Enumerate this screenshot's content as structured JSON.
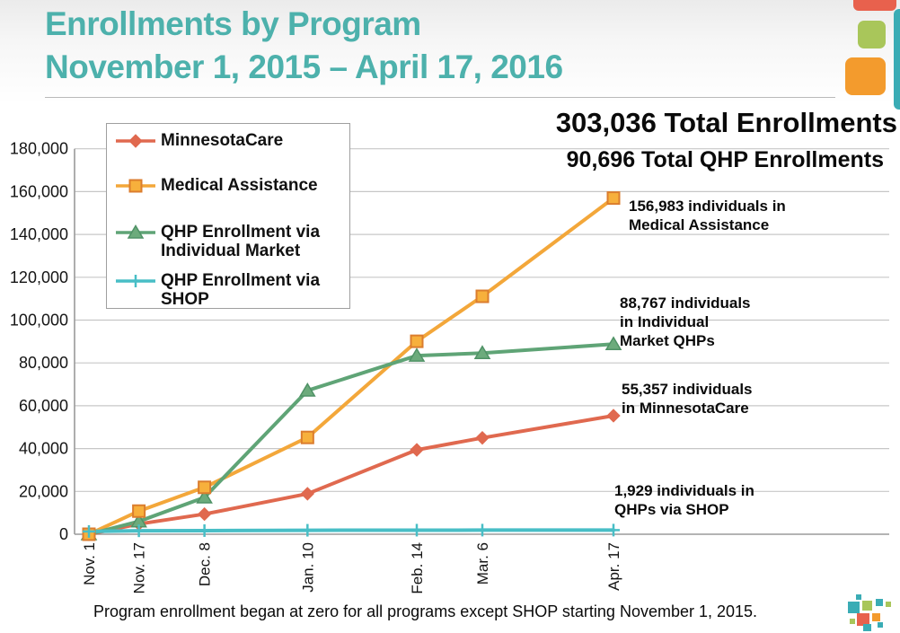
{
  "header": {
    "title_line1": "Enrollments by Program",
    "title_line2": "November 1, 2015 – April 17, 2016"
  },
  "totals": {
    "total_enrollments": "303,036 Total Enrollments",
    "total_qhp": "90,696 Total QHP Enrollments"
  },
  "annotations": [
    {
      "text": "156,983 individuals in\nMedical Assistance"
    },
    {
      "text": "88,767 individuals\nin Individual\nMarket QHPs"
    },
    {
      "text": "55,357 individuals\nin MinnesotaCare"
    },
    {
      "text": "1,929 individuals in\nQHPs via SHOP"
    }
  ],
  "footnote": "Program enrollment began at zero for all programs except SHOP starting November 1, 2015.",
  "decor": {
    "red": "#e8614d",
    "green": "#a9c65a",
    "orange": "#f39b2d",
    "teal": "#3aacb5",
    "title_teal": "#4db1ac"
  },
  "chart_data": {
    "type": "line",
    "title": "",
    "xlabel": "",
    "ylabel": "",
    "x_labels": [
      "Nov. 1",
      "Nov. 17",
      "Dec. 8",
      "Jan. 10",
      "Feb. 14",
      "Mar. 6",
      "Apr. 17"
    ],
    "x_days": [
      0,
      16,
      37,
      70,
      105,
      126,
      168
    ],
    "ylim": [
      0,
      180000
    ],
    "ytick_interval": 20000,
    "ytick_labels": [
      "0",
      "20,000",
      "40,000",
      "60,000",
      "80,000",
      "100,000",
      "120,000",
      "140,000",
      "160,000",
      "180,000"
    ],
    "grid": true,
    "legend_position": "top-left",
    "series": [
      {
        "name": "MinnesotaCare",
        "marker": "diamond",
        "color": "#e0694f",
        "values": [
          0,
          4800,
          9400,
          18900,
          39400,
          45000,
          55357
        ]
      },
      {
        "name": "Medical Assistance",
        "marker": "square",
        "color": "#f3a73a",
        "marker_fill": "#f7b03c",
        "marker_stroke": "#db7d2e",
        "values": [
          0,
          10800,
          21900,
          45200,
          90100,
          111100,
          156983
        ]
      },
      {
        "name": "QHP Enrollment via Individual Market",
        "marker": "triangle",
        "color": "#5fa476",
        "marker_fill": "#6cab7c",
        "marker_stroke": "#4f9266",
        "values": [
          0,
          6000,
          17200,
          67100,
          83400,
          84600,
          88767
        ]
      },
      {
        "name": "QHP Enrollment via SHOP",
        "marker": "plus",
        "color": "#48bec6",
        "values": [
          1300,
          1600,
          1700,
          1850,
          1900,
          1920,
          1929
        ]
      }
    ]
  }
}
